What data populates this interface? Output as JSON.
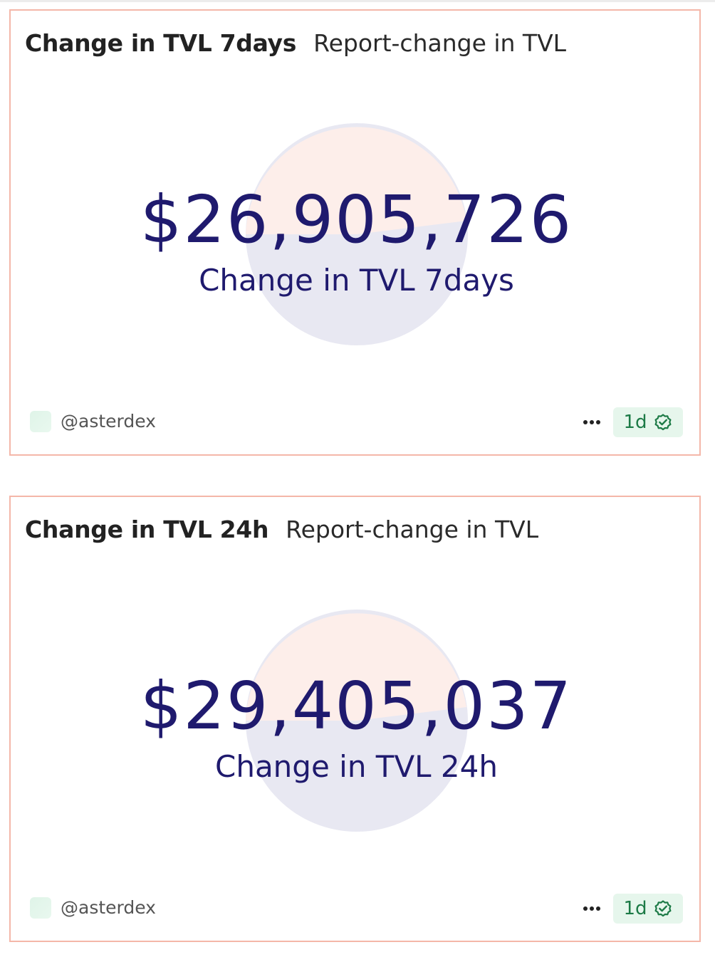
{
  "cards": [
    {
      "title": "Change in TVL 7days",
      "subtitle": "Report-change in TVL",
      "value": "$26,905,726",
      "label": "Change in TVL 7days",
      "author": "@asterdex",
      "age": "1d",
      "verified_icon": "verified-check-icon",
      "more_icon": "more-dots-icon"
    },
    {
      "title": "Change in TVL 24h",
      "subtitle": "Report-change in TVL",
      "value": "$29,405,037",
      "label": "Change in TVL 24h",
      "author": "@asterdex",
      "age": "1d",
      "verified_icon": "verified-check-icon",
      "more_icon": "more-dots-icon"
    }
  ],
  "colors": {
    "card_border": "#f4b7a9",
    "value_text": "#1f1a6e",
    "badge_bg": "#e6f6ec",
    "badge_text": "#1c7a46",
    "pie_slice_a": "#fdeeea",
    "pie_slice_b": "#e8e8f2"
  }
}
